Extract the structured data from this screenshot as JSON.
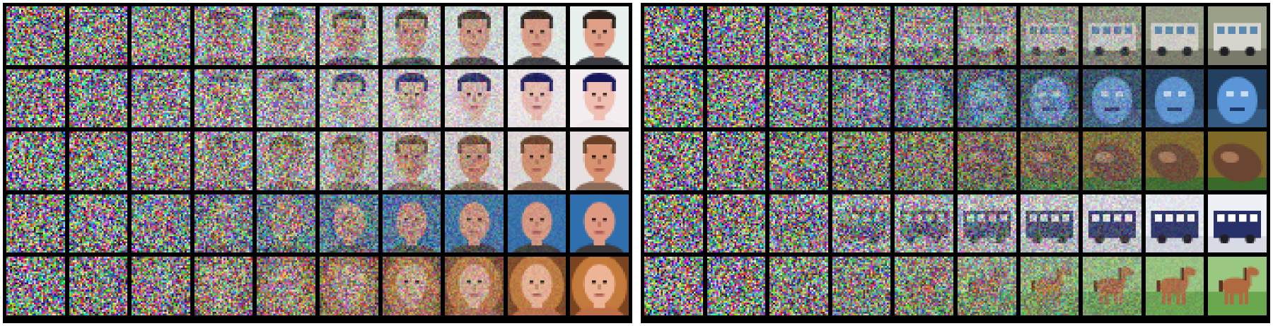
{
  "figure": {
    "panels": [
      {
        "id": "faces",
        "rows": [
          {
            "subject": "face",
            "background": "#e8f0ee",
            "skin": "#e0a088",
            "hair": "#2a1e18",
            "hairStyle": "short",
            "bald": false,
            "shirt": "#3a3a40"
          },
          {
            "subject": "face",
            "background": "#f4eef0",
            "skin": "#f0c0b4",
            "hair": "#16165a",
            "hairStyle": "short",
            "bald": false,
            "shirt": "#f0e8e8"
          },
          {
            "subject": "face",
            "background": "#e6e0e0",
            "skin": "#d89270",
            "hair": "#6a4026",
            "hairStyle": "short",
            "bald": false,
            "shirt": "#8a6a58"
          },
          {
            "subject": "face",
            "background": "#2f6fae",
            "skin": "#de9a82",
            "hair": "#cfa58e",
            "hairStyle": "short",
            "bald": true,
            "shirt": "#3a3838"
          },
          {
            "subject": "face",
            "background": "#7a4420",
            "skin": "#eeb496",
            "hair": "#c47a3a",
            "hairStyle": "long",
            "bald": false,
            "shirt": "#c07048"
          }
        ]
      },
      {
        "id": "objects",
        "rows": [
          {
            "subject": "bus",
            "background": "#9aa088",
            "body": "#d6d4cc",
            "accent": "#5a8ab0",
            "ground": "#7a7a6a"
          },
          {
            "subject": "blue-figure",
            "background": "#244060",
            "body": "#5a96d8",
            "accent": "#c8dcf0",
            "ground": "#345a82"
          },
          {
            "subject": "rock",
            "background": "#806a2a",
            "body": "#6a4632",
            "accent": "#a87a5a",
            "ground": "#3a6a2a"
          },
          {
            "subject": "truck",
            "background": "#eef0f6",
            "body": "#28306a",
            "accent": "#ffffff",
            "ground": "#d8dae6"
          },
          {
            "subject": "horse",
            "background": "#9ac880",
            "body": "#b06a40",
            "accent": "#5a3220",
            "ground": "#6aa850"
          }
        ]
      }
    ],
    "columns": 10
  }
}
